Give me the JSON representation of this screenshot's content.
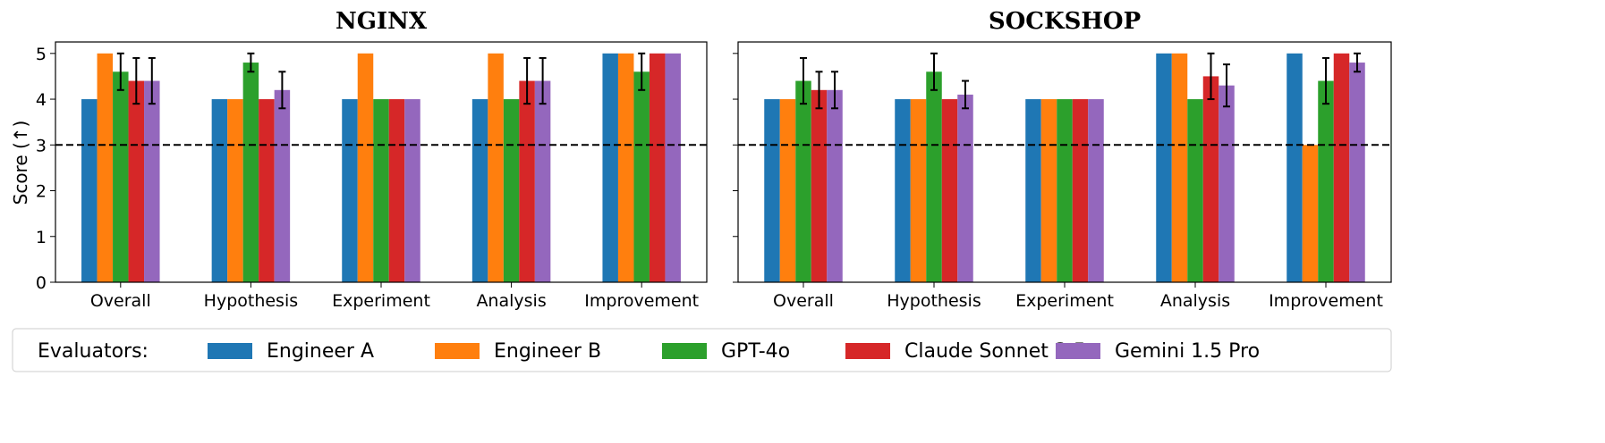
{
  "chart_data": [
    {
      "type": "bar",
      "title": "NGINX",
      "ylabel": "Score (↑)",
      "ylim": [
        0,
        5.25
      ],
      "yticks": [
        0,
        1,
        2,
        3,
        4,
        5
      ],
      "reference_line": 3,
      "categories": [
        "Overall",
        "Hypothesis",
        "Experiment",
        "Analysis",
        "Improvement"
      ],
      "series": [
        {
          "name": "Engineer A",
          "values": [
            4,
            4,
            4,
            4,
            5
          ],
          "errors": [
            0,
            0,
            0,
            0,
            0
          ]
        },
        {
          "name": "Engineer B",
          "values": [
            5,
            4,
            5,
            5,
            5
          ],
          "errors": [
            0,
            0,
            0,
            0,
            0
          ]
        },
        {
          "name": "GPT-4o",
          "values": [
            4.6,
            4.8,
            4,
            4,
            4.6
          ],
          "errors": [
            0.4,
            0.2,
            0,
            0,
            0.4
          ]
        },
        {
          "name": "Claude Sonnet 3.5",
          "values": [
            4.4,
            4,
            4,
            4.4,
            5
          ],
          "errors": [
            0.5,
            0,
            0,
            0.5,
            0
          ]
        },
        {
          "name": "Gemini 1.5 Pro",
          "values": [
            4.4,
            4.2,
            4,
            4.4,
            5
          ],
          "errors": [
            0.5,
            0.4,
            0,
            0.5,
            0
          ]
        }
      ]
    },
    {
      "type": "bar",
      "title": "SOCKSHOP",
      "ylim": [
        0,
        5.25
      ],
      "yticks": [
        0,
        1,
        2,
        3,
        4,
        5
      ],
      "reference_line": 3,
      "categories": [
        "Overall",
        "Hypothesis",
        "Experiment",
        "Analysis",
        "Improvement"
      ],
      "series": [
        {
          "name": "Engineer A",
          "values": [
            4,
            4,
            4,
            5,
            5
          ],
          "errors": [
            0,
            0,
            0,
            0,
            0
          ]
        },
        {
          "name": "Engineer B",
          "values": [
            4,
            4,
            4,
            5,
            3
          ],
          "errors": [
            0,
            0,
            0,
            0,
            0
          ]
        },
        {
          "name": "GPT-4o",
          "values": [
            4.4,
            4.6,
            4,
            4,
            4.4
          ],
          "errors": [
            0.5,
            0.4,
            0,
            0,
            0.5
          ]
        },
        {
          "name": "Claude Sonnet 3.5",
          "values": [
            4.2,
            4,
            4,
            4.5,
            5
          ],
          "errors": [
            0.4,
            0,
            0,
            0.5,
            0
          ]
        },
        {
          "name": "Gemini 1.5 Pro",
          "values": [
            4.2,
            4.1,
            4,
            4.3,
            4.8
          ],
          "errors": [
            0.4,
            0.3,
            0,
            0.46,
            0.2
          ]
        }
      ]
    }
  ],
  "legend": {
    "title": "Evaluators:",
    "placement": "bottom",
    "items": [
      "Engineer A",
      "Engineer B",
      "GPT-4o",
      "Claude Sonnet 3.5",
      "Gemini 1.5 Pro"
    ]
  },
  "colors": [
    "#1f77b4",
    "#ff7f0e",
    "#2ca02c",
    "#d62728",
    "#9467bd"
  ]
}
